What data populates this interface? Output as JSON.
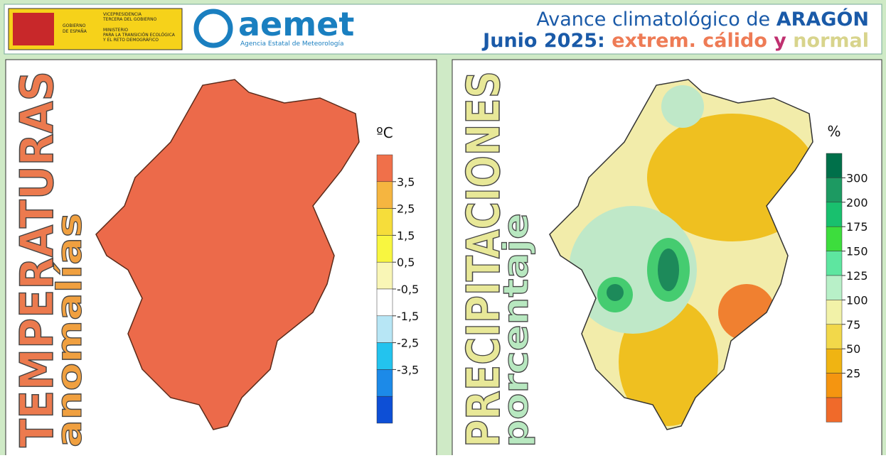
{
  "header": {
    "government": {
      "line1": "VICEPRESIDENCIA",
      "line2": "TERCERA DEL GOBIERNO",
      "line3": "MINISTERIO",
      "line4": "PARA LA TRANSICIÓN ECOLÓGICA",
      "line5": "Y EL RETO DEMOGRÁFICO",
      "gov1": "GOBIERNO",
      "gov2": "DE ESPAÑA"
    },
    "brand": "aemet",
    "agency": "Agencia Estatal de Meteorología",
    "title": {
      "line1": "Avance climatológico de ",
      "region": "ARAGÓN",
      "line2": "Junio 2025: ",
      "temp_class": "extrem. cálido",
      "join": " y ",
      "precip_class": "normal"
    }
  },
  "panels": [
    {
      "title": "TEMPERATURAS",
      "subtitle": "anomalías",
      "unit": "ºC",
      "legend": {
        "labels": [
          "3,5",
          "2,5",
          "1,5",
          "0,5",
          "-0,5",
          "-1,5",
          "-2,5",
          "-3,5"
        ],
        "colors": [
          "#f0704a",
          "#f5b540",
          "#f6dd3a",
          "#f8f640",
          "#f9f6b6",
          "#ffffff",
          "#b7e6f5",
          "#23c3ee",
          "#1c8ae8",
          "#0d4fd6"
        ]
      }
    },
    {
      "title": "PRECIPITACIONES",
      "subtitle": "porcentaje",
      "unit": "%",
      "legend": {
        "labels": [
          "300",
          "200",
          "175",
          "150",
          "125",
          "100",
          "75",
          "50",
          "25"
        ],
        "colors": [
          "#00704a",
          "#1d9a62",
          "#19c06e",
          "#3ddd3d",
          "#5ee6a0",
          "#b8f0c8",
          "#f2f2a8",
          "#f2d84a",
          "#f0b412",
          "#f59510",
          "#f06a2a"
        ]
      }
    }
  ]
}
